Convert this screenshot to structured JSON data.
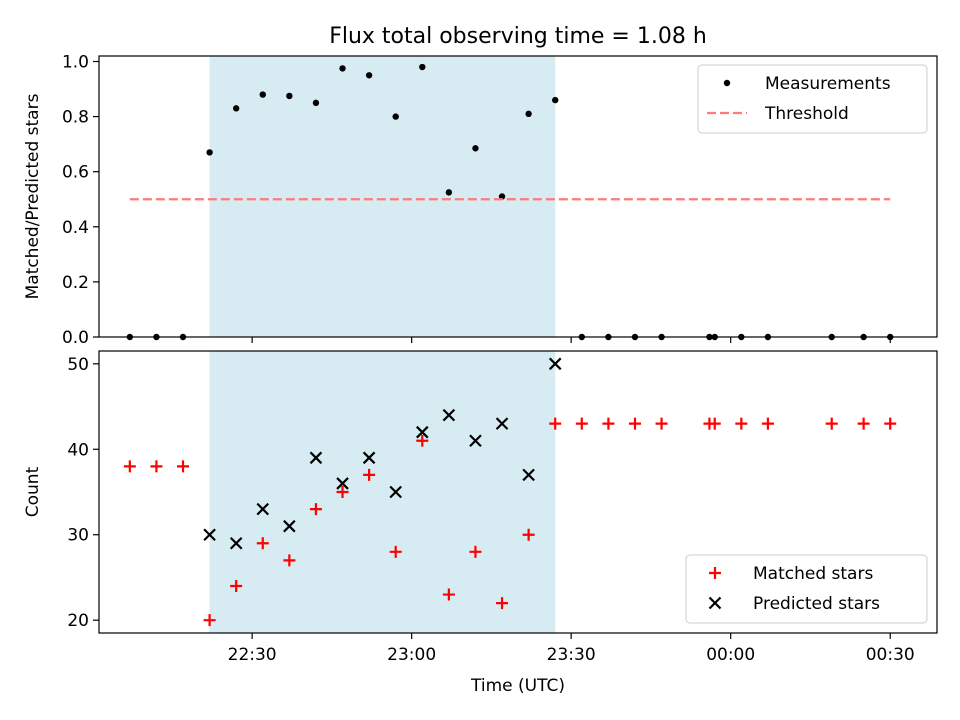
{
  "title": "Flux total observing time = 1.08 h",
  "chart_data": [
    {
      "type": "scatter",
      "panel": "top",
      "ylabel": "Matched/Predicted stars",
      "ylim": [
        0.0,
        1.02
      ],
      "yticks": [
        0.0,
        0.2,
        0.4,
        0.6,
        0.8,
        1.0
      ],
      "ytick_labels": [
        "0.0",
        "0.2",
        "0.4",
        "0.6",
        "0.8",
        "1.0"
      ],
      "legend": {
        "position": "top-right",
        "entries": [
          "Measurements",
          "Threshold"
        ]
      },
      "shaded_interval": {
        "start": "22:22",
        "end": "23:27",
        "color": "#add8e6"
      },
      "series": [
        {
          "name": "Measurements",
          "marker": "dot",
          "color": "#000000",
          "points": [
            [
              "22:07",
              0.0
            ],
            [
              "22:12",
              0.0
            ],
            [
              "22:17",
              0.0
            ],
            [
              "22:22",
              0.67
            ],
            [
              "22:27",
              0.83
            ],
            [
              "22:32",
              0.88
            ],
            [
              "22:37",
              0.875
            ],
            [
              "22:42",
              0.85
            ],
            [
              "22:47",
              0.975
            ],
            [
              "22:52",
              0.95
            ],
            [
              "22:57",
              0.8
            ],
            [
              "23:02",
              0.98
            ],
            [
              "23:07",
              0.525
            ],
            [
              "23:12",
              0.685
            ],
            [
              "23:17",
              0.51
            ],
            [
              "23:22",
              0.81
            ],
            [
              "23:27",
              0.86
            ],
            [
              "23:32",
              0.0
            ],
            [
              "23:37",
              0.0
            ],
            [
              "23:42",
              0.0
            ],
            [
              "23:47",
              0.0
            ],
            [
              "23:56",
              0.0
            ],
            [
              "23:57",
              0.0
            ],
            [
              "00:02",
              0.0
            ],
            [
              "00:07",
              0.0
            ],
            [
              "00:19",
              0.0
            ],
            [
              "00:25",
              0.0
            ],
            [
              "00:30",
              0.0
            ]
          ]
        },
        {
          "name": "Threshold",
          "style": "dashed",
          "color": "#ff7a7a",
          "points": [
            [
              "22:07",
              0.5
            ],
            [
              "00:30",
              0.5
            ]
          ]
        }
      ]
    },
    {
      "type": "scatter",
      "panel": "bottom",
      "xlabel": "Time (UTC)",
      "ylabel": "Count",
      "ylim": [
        18.5,
        51.5
      ],
      "yticks": [
        20,
        30,
        40,
        50
      ],
      "ytick_labels": [
        "20",
        "30",
        "40",
        "50"
      ],
      "xticks": [
        "22:30",
        "23:00",
        "23:30",
        "00:00",
        "00:30"
      ],
      "legend": {
        "position": "bottom-right",
        "entries": [
          "Matched stars",
          "Predicted stars"
        ]
      },
      "shaded_interval": {
        "start": "22:22",
        "end": "23:27",
        "color": "#add8e6"
      },
      "series": [
        {
          "name": "Matched stars",
          "marker": "plus",
          "color": "#ff0000",
          "points": [
            [
              "22:07",
              38
            ],
            [
              "22:12",
              38
            ],
            [
              "22:17",
              38
            ],
            [
              "22:22",
              20
            ],
            [
              "22:27",
              24
            ],
            [
              "22:32",
              29
            ],
            [
              "22:37",
              27
            ],
            [
              "22:42",
              33
            ],
            [
              "22:47",
              35
            ],
            [
              "22:52",
              37
            ],
            [
              "22:57",
              28
            ],
            [
              "23:02",
              41
            ],
            [
              "23:07",
              23
            ],
            [
              "23:12",
              28
            ],
            [
              "23:17",
              22
            ],
            [
              "23:22",
              30
            ],
            [
              "23:27",
              43
            ],
            [
              "23:32",
              43
            ],
            [
              "23:37",
              43
            ],
            [
              "23:42",
              43
            ],
            [
              "23:47",
              43
            ],
            [
              "23:56",
              43
            ],
            [
              "23:57",
              43
            ],
            [
              "00:02",
              43
            ],
            [
              "00:07",
              43
            ],
            [
              "00:19",
              43
            ],
            [
              "00:25",
              43
            ],
            [
              "00:30",
              43
            ]
          ]
        },
        {
          "name": "Predicted stars",
          "marker": "x",
          "color": "#000000",
          "points": [
            [
              "22:22",
              30
            ],
            [
              "22:27",
              29
            ],
            [
              "22:32",
              33
            ],
            [
              "22:37",
              31
            ],
            [
              "22:42",
              39
            ],
            [
              "22:47",
              36
            ],
            [
              "22:52",
              39
            ],
            [
              "22:57",
              35
            ],
            [
              "23:02",
              42
            ],
            [
              "23:07",
              44
            ],
            [
              "23:12",
              41
            ],
            [
              "23:17",
              43
            ],
            [
              "23:22",
              37
            ],
            [
              "23:27",
              50
            ]
          ]
        }
      ]
    }
  ]
}
